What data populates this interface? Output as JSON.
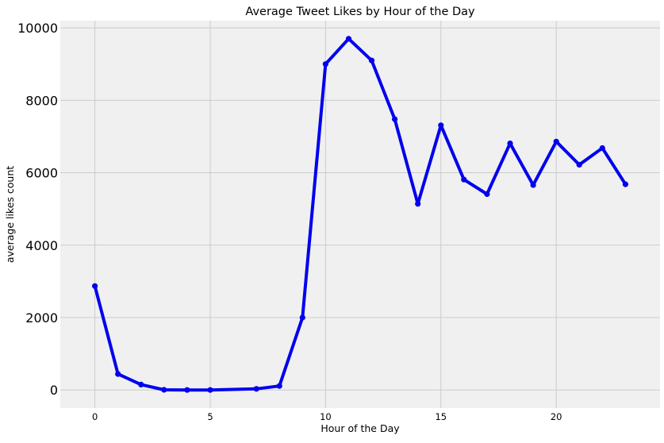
{
  "chart_data": {
    "type": "line",
    "title": "Average Tweet Likes by Hour of the Day",
    "xlabel": "Hour of the Day",
    "ylabel": "average likes count",
    "xlim": [
      -1.5,
      24.5
    ],
    "ylim": [
      -500,
      10200
    ],
    "x_ticks": [
      0,
      5,
      10,
      15,
      20
    ],
    "y_ticks": [
      0,
      2000,
      4000,
      6000,
      8000,
      10000
    ],
    "grid": true,
    "legend": "none",
    "series": [
      {
        "color": "#0000ee",
        "marker": "circle",
        "x": [
          0,
          1,
          2,
          3,
          4,
          5,
          7,
          8,
          9,
          10,
          11,
          12,
          13,
          14,
          15,
          16,
          17,
          18,
          19,
          20,
          21,
          22,
          23
        ],
        "y": [
          2870,
          440,
          150,
          5,
          0,
          0,
          30,
          110,
          2000,
          9000,
          9700,
          9100,
          7480,
          5140,
          7310,
          5810,
          5410,
          6810,
          5660,
          6860,
          6220,
          6680,
          5680
        ]
      }
    ]
  }
}
